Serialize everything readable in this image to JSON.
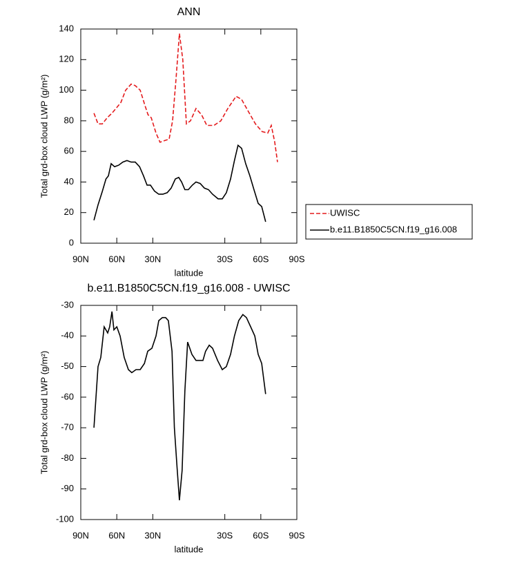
{
  "chart_data": [
    {
      "type": "line",
      "title": "ANN",
      "xlabel": "latitude",
      "ylabel": "Total grd-box cloud LWP (g/m²)",
      "xlim": [
        90,
        -90
      ],
      "xticks": [
        {
          "value": 90,
          "label": "90N"
        },
        {
          "value": 60,
          "label": "60N"
        },
        {
          "value": 30,
          "label": "30N"
        },
        {
          "value": -30,
          "label": "30S"
        },
        {
          "value": -60,
          "label": "60S"
        },
        {
          "value": -90,
          "label": "90S"
        }
      ],
      "ylim": [
        0,
        140
      ],
      "yticks": [
        0,
        20,
        40,
        60,
        80,
        100,
        120,
        140
      ],
      "legend": "right",
      "series": [
        {
          "name": "UWISC",
          "color": "#e41a1c",
          "style": "dashed",
          "x": [
            79,
            75.6,
            72,
            68,
            64,
            60.7,
            56.6,
            52.6,
            48,
            44.6,
            40.5,
            36.5,
            34,
            31.3,
            27.3,
            24,
            20.4,
            16.4,
            13.5,
            10.6,
            7.8,
            5,
            2,
            -1.4,
            -6,
            -10.6,
            -15,
            -21,
            -26.7,
            -32.5,
            -39.4,
            -44,
            -49.7,
            -55.5,
            -61,
            -65.8,
            -68.7,
            -71.6,
            -73.9
          ],
          "values": [
            85,
            78,
            78,
            82,
            85,
            88,
            92,
            100,
            104,
            103,
            100,
            90,
            84,
            82,
            72,
            66,
            67,
            68,
            80,
            108,
            137,
            120,
            78,
            80,
            88,
            84,
            77,
            77,
            80,
            88,
            96,
            94,
            86,
            78,
            73,
            72,
            77,
            66,
            53
          ]
        },
        {
          "name": "b.e11.B1850C5CN.f19_g16.008",
          "color": "#000000",
          "style": "solid",
          "x": [
            79,
            75.6,
            72,
            69,
            67,
            64.7,
            61.8,
            58.4,
            55,
            51.5,
            48,
            44.6,
            41,
            37.7,
            34.8,
            32,
            28.5,
            25,
            21.6,
            18,
            14.7,
            11.2,
            8.4,
            6,
            3.3,
            0.4,
            -3,
            -6,
            -9.5,
            -13,
            -16.4,
            -19.8,
            -24.4,
            -27.9,
            -31.3,
            -34.8,
            -38,
            -41,
            -44,
            -47.4,
            -50.9,
            -54.3,
            -57.8,
            -60.7,
            -64
          ],
          "values": [
            15,
            25,
            34,
            42,
            44,
            52,
            50,
            51,
            53,
            54,
            53,
            53,
            50,
            44,
            38,
            38,
            34,
            32,
            32,
            33,
            36,
            42,
            43,
            40,
            35,
            35,
            38,
            40,
            39,
            36,
            35,
            32,
            29,
            29,
            33,
            42,
            54,
            64,
            62,
            52,
            44,
            35,
            26,
            24,
            14
          ]
        }
      ]
    },
    {
      "type": "line",
      "title": "b.e11.B1850C5CN.f19_g16.008 - UWISC",
      "xlabel": "latitude",
      "ylabel": "Total grd-box cloud LWP (g/m²)",
      "xlim": [
        90,
        -90
      ],
      "xticks": [
        {
          "value": 90,
          "label": "90N"
        },
        {
          "value": 60,
          "label": "60N"
        },
        {
          "value": 30,
          "label": "30N"
        },
        {
          "value": -30,
          "label": "30S"
        },
        {
          "value": -60,
          "label": "60S"
        },
        {
          "value": -90,
          "label": "90S"
        }
      ],
      "ylim": [
        -100,
        -30
      ],
      "yticks": [
        -100,
        -90,
        -80,
        -70,
        -60,
        -50,
        -40,
        -30
      ],
      "color": "#000000",
      "x": [
        79,
        75.6,
        73.3,
        70.5,
        67.6,
        65.9,
        64,
        62.4,
        60,
        57.2,
        53.8,
        50.3,
        47.5,
        44,
        40.5,
        37,
        34.2,
        30.7,
        27.3,
        25,
        22,
        19.3,
        17,
        14,
        12,
        9.8,
        7.8,
        5.6,
        3.3,
        1,
        -2.6,
        -6,
        -9.5,
        -11.8,
        -14,
        -17,
        -19.8,
        -24,
        -27.9,
        -31.3,
        -34.8,
        -38,
        -41.6,
        -45,
        -48,
        -51.5,
        -55,
        -57.8,
        -60.7,
        -64
      ],
      "values": [
        -70,
        -50,
        -47,
        -37,
        -39,
        -37,
        -32,
        -38,
        -37,
        -40,
        -47,
        -51,
        -52,
        -51,
        -51,
        -49,
        -45,
        -44,
        -40,
        -35,
        -34,
        -34,
        -35,
        -45,
        -70,
        -83,
        -93.7,
        -84,
        -58,
        -42,
        -46,
        -48,
        -48,
        -48,
        -45,
        -43,
        -44,
        -48,
        -51,
        -50,
        -46,
        -40,
        -35,
        -33,
        -34,
        -37,
        -40,
        -46,
        -49,
        -59
      ]
    }
  ]
}
